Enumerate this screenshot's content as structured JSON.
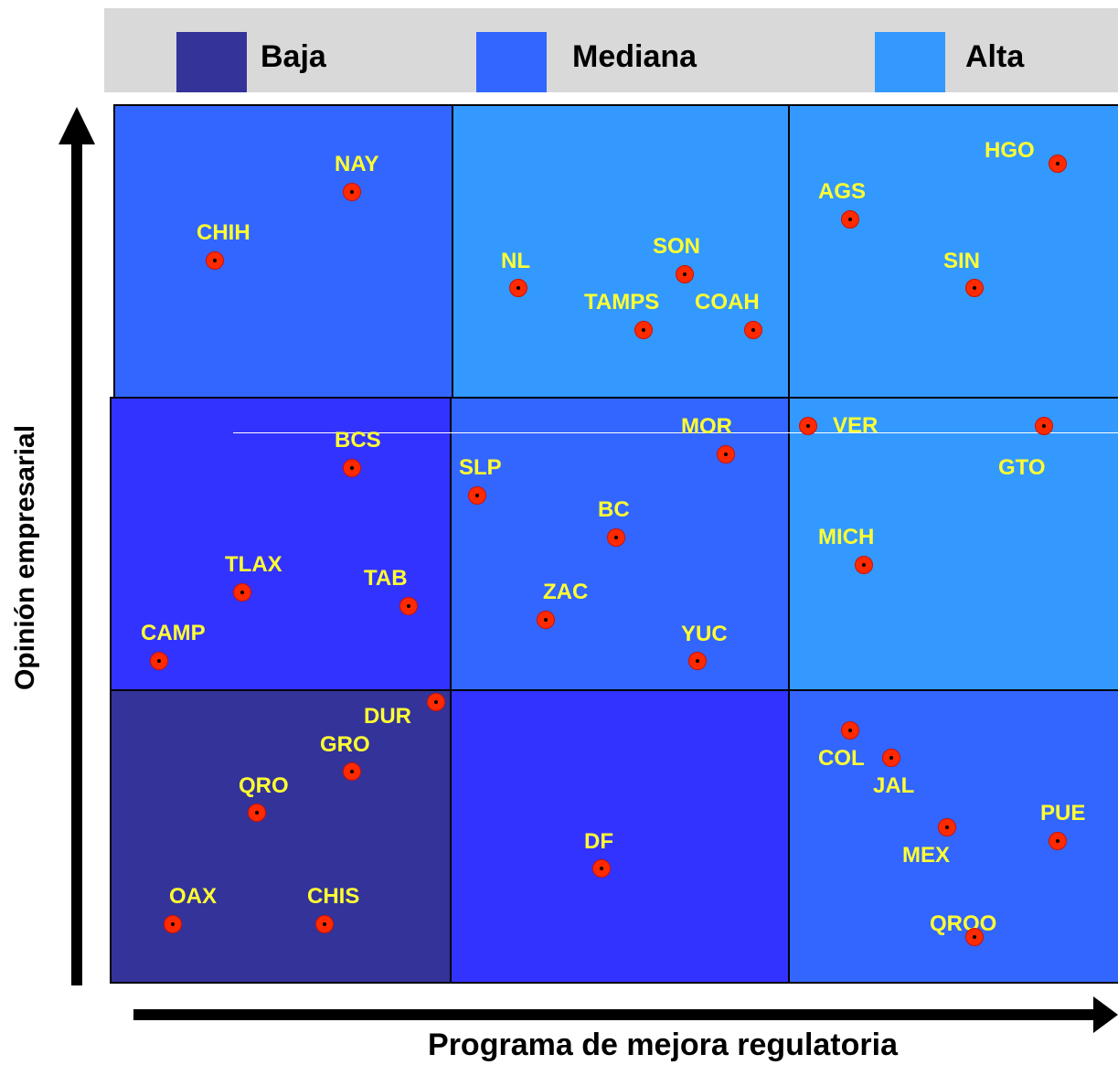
{
  "legend": [
    {
      "label": "Baja",
      "color": "#33339a"
    },
    {
      "label": "Mediana",
      "color": "#3366ff"
    },
    {
      "label": "Alta",
      "color": "#3399ff"
    }
  ],
  "colors": {
    "baja": "#33339a",
    "baja_bright": "#3333ff",
    "mediana": "#3366ff",
    "alta": "#3399ff",
    "dot": "#ff2a00",
    "label": "#ffff33"
  },
  "axes": {
    "x_title": "Programa de mejora regulatoria",
    "y_title": "Opinión empresarial"
  },
  "states": [
    {
      "name": "NAY"
    },
    {
      "name": "CHIH"
    },
    {
      "name": "NL"
    },
    {
      "name": "SON"
    },
    {
      "name": "TAMPS"
    },
    {
      "name": "COAH"
    },
    {
      "name": "HGO"
    },
    {
      "name": "AGS"
    },
    {
      "name": "SIN"
    },
    {
      "name": "BCS"
    },
    {
      "name": "MOR"
    },
    {
      "name": "SLP"
    },
    {
      "name": "BC"
    },
    {
      "name": "TLAX"
    },
    {
      "name": "TAB"
    },
    {
      "name": "ZAC"
    },
    {
      "name": "CAMP"
    },
    {
      "name": "YUC"
    },
    {
      "name": "VER"
    },
    {
      "name": "GTO"
    },
    {
      "name": "MICH"
    },
    {
      "name": "DUR"
    },
    {
      "name": "GRO"
    },
    {
      "name": "QRO"
    },
    {
      "name": "OAX"
    },
    {
      "name": "CHIS"
    },
    {
      "name": "DF"
    },
    {
      "name": "COL"
    },
    {
      "name": "JAL"
    },
    {
      "name": "PUE"
    },
    {
      "name": "MEX"
    },
    {
      "name": "QROO"
    }
  ]
}
